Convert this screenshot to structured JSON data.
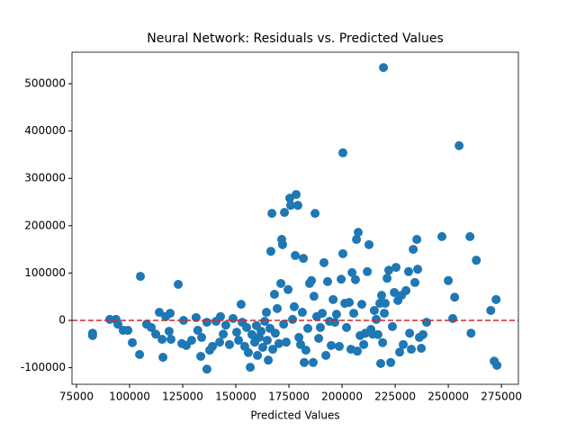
{
  "chart_data": {
    "type": "scatter",
    "title": "Neural Network: Residuals vs. Predicted Values",
    "x_label": "Predicted Values",
    "color": "#1f77b4",
    "reference_line": {
      "value": 0,
      "color": "#d62728",
      "style": "dashed"
    },
    "xlim": [
      72900,
      283000
    ],
    "ylim": [
      -135000,
      566500
    ],
    "xticks": [
      75000,
      100000,
      125000,
      150000,
      175000,
      200000,
      225000,
      250000,
      275000
    ],
    "yticks": [
      -100000,
      0,
      100000,
      200000,
      300000,
      400000,
      500000
    ],
    "x": [
      82600,
      82600,
      90700,
      93600,
      94500,
      97000,
      99200,
      101300,
      104700,
      105100,
      108000,
      110200,
      112300,
      114000,
      115300,
      115700,
      117000,
      119100,
      118600,
      119500,
      122900,
      124600,
      125400,
      126700,
      129200,
      131300,
      132100,
      133900,
      133500,
      136400,
      136400,
      137700,
      139000,
      140700,
      142400,
      142800,
      144100,
      145300,
      147000,
      148700,
      150400,
      151300,
      152500,
      153000,
      154200,
      155100,
      155900,
      156800,
      157600,
      158900,
      159700,
      160200,
      161000,
      161900,
      162700,
      163600,
      164400,
      164800,
      165300,
      166100,
      166500,
      167000,
      167400,
      168200,
      168600,
      169500,
      170300,
      171200,
      171600,
      172000,
      172500,
      172900,
      173700,
      174600,
      175400,
      175800,
      176700,
      177500,
      178000,
      178400,
      179200,
      179700,
      180500,
      181300,
      181800,
      182200,
      183000,
      183900,
      184700,
      185600,
      186400,
      186800,
      187300,
      188100,
      189000,
      189800,
      190700,
      191500,
      192400,
      193200,
      194100,
      194900,
      195800,
      196600,
      197400,
      198700,
      199600,
      200400,
      200400,
      201300,
      202100,
      203400,
      204200,
      204700,
      205500,
      206300,
      206800,
      207200,
      207600,
      208500,
      209300,
      210200,
      211000,
      211900,
      212700,
      213600,
      214400,
      215200,
      216100,
      216900,
      217800,
      218200,
      218600,
      219100,
      219500,
      219900,
      220300,
      221200,
      222000,
      222900,
      223700,
      224600,
      225400,
      226300,
      227100,
      228000,
      228800,
      230100,
      231300,
      231800,
      232600,
      233500,
      234300,
      235200,
      235600,
      236400,
      237300,
      238100,
      239800,
      247000,
      250000,
      252100,
      253000,
      255100,
      260200,
      260700,
      263200,
      270000,
      271600,
      272500,
      272900
    ],
    "values": [
      -27000,
      -32000,
      2000,
      2000,
      -8000,
      -21000,
      -21000,
      -47000,
      -72000,
      93000,
      -8000,
      -15000,
      -29000,
      17000,
      -40000,
      -78000,
      8000,
      15000,
      -23000,
      -40000,
      76000,
      -49000,
      0,
      -53000,
      -42000,
      6000,
      -21000,
      -36000,
      -76000,
      -4000,
      -103000,
      -63000,
      -55000,
      -2000,
      -46000,
      8000,
      -29000,
      -10000,
      -51000,
      4000,
      -25000,
      -42000,
      34000,
      -4000,
      -55000,
      -15000,
      -68000,
      -99000,
      -30000,
      -46000,
      -11000,
      -74000,
      -36000,
      -23000,
      -57000,
      -2000,
      17000,
      -42000,
      -84000,
      -17000,
      146000,
      226000,
      -61000,
      55000,
      -27000,
      25000,
      -49000,
      78000,
      171000,
      160000,
      -8000,
      228000,
      -46000,
      65000,
      258000,
      243000,
      2000,
      29000,
      137000,
      266000,
      243000,
      -36000,
      -51000,
      17000,
      131000,
      -89000,
      -63000,
      -17000,
      78000,
      84000,
      -89000,
      51000,
      226000,
      8000,
      -38000,
      -15000,
      15000,
      122000,
      -74000,
      82000,
      -2000,
      -53000,
      44000,
      -4000,
      13000,
      -55000,
      87000,
      354000,
      141000,
      36000,
      -15000,
      38000,
      -61000,
      101000,
      15000,
      86000,
      171000,
      -65000,
      186000,
      -32000,
      34000,
      -51000,
      -27000,
      103000,
      160000,
      -19000,
      -29000,
      21000,
      2000,
      -30000,
      36000,
      -91000,
      53000,
      -47000,
      534000,
      15000,
      36000,
      89000,
      106000,
      -89000,
      -13000,
      59000,
      112000,
      42000,
      -67000,
      53000,
      -51000,
      63000,
      103000,
      -27000,
      -61000,
      150000,
      80000,
      171000,
      108000,
      -36000,
      -59000,
      -30000,
      -4000,
      177000,
      84000,
      4000,
      49000,
      369000,
      177000,
      -27000,
      127000,
      21000,
      -86000,
      44000,
      -95000
    ]
  }
}
